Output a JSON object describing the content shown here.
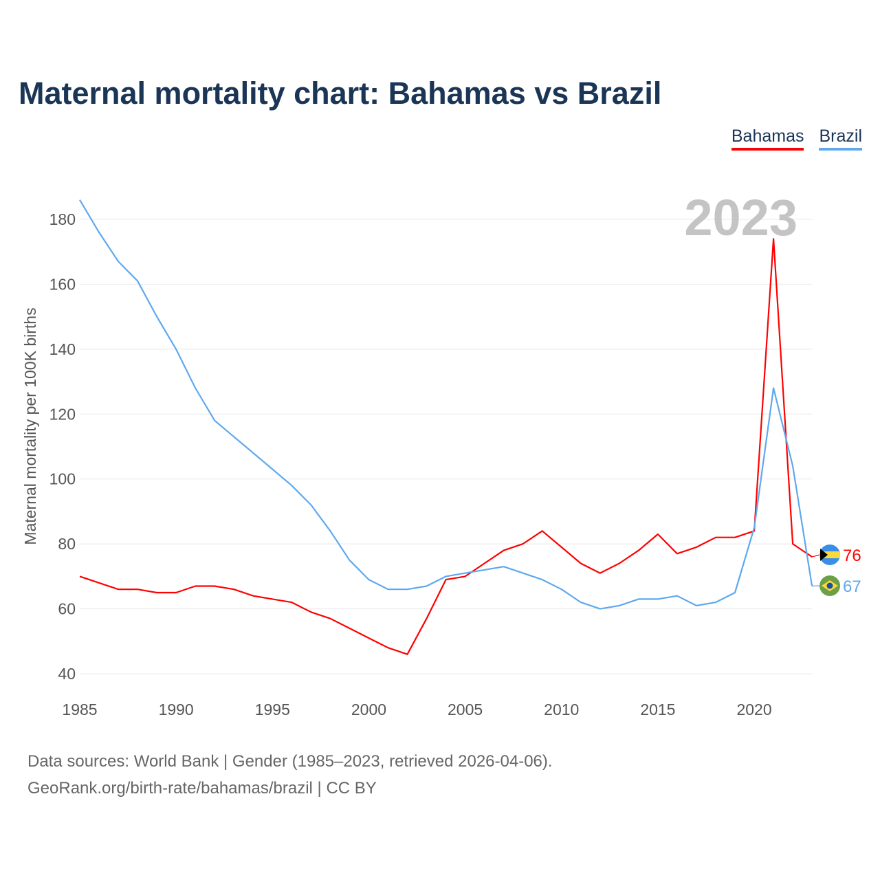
{
  "chart_data": {
    "type": "line",
    "title": "Maternal mortality chart: Bahamas vs Brazil",
    "xlabel": "",
    "ylabel": "Maternal mortality per 100K births",
    "year_label": "2023",
    "xlim": [
      1985,
      2023
    ],
    "ylim": [
      40,
      186
    ],
    "x_ticks": [
      1985,
      1990,
      1995,
      2000,
      2005,
      2010,
      2015,
      2020
    ],
    "y_ticks": [
      40,
      60,
      80,
      100,
      120,
      140,
      160,
      180
    ],
    "grid": true,
    "legend_position": "top-right",
    "x": [
      1985,
      1986,
      1987,
      1988,
      1989,
      1990,
      1991,
      1992,
      1993,
      1994,
      1995,
      1996,
      1997,
      1998,
      1999,
      2000,
      2001,
      2002,
      2003,
      2004,
      2005,
      2006,
      2007,
      2008,
      2009,
      2010,
      2011,
      2012,
      2013,
      2014,
      2015,
      2016,
      2017,
      2018,
      2019,
      2020,
      2021,
      2022,
      2023
    ],
    "series": [
      {
        "name": "Bahamas",
        "color": "#ff0000",
        "end_label": "76",
        "values": [
          70,
          68,
          66,
          66,
          65,
          65,
          67,
          67,
          66,
          64,
          63,
          62,
          59,
          57,
          54,
          51,
          48,
          46,
          57,
          69,
          70,
          74,
          78,
          80,
          84,
          79,
          74,
          71,
          74,
          78,
          83,
          77,
          79,
          82,
          82,
          84,
          174,
          80,
          76
        ]
      },
      {
        "name": "Brazil",
        "color": "#5ea8ee",
        "end_label": "67",
        "values": [
          186,
          176,
          167,
          161,
          150,
          140,
          128,
          118,
          113,
          108,
          103,
          98,
          92,
          84,
          75,
          69,
          66,
          66,
          67,
          70,
          71,
          72,
          73,
          71,
          69,
          66,
          62,
          60,
          61,
          63,
          63,
          64,
          61,
          62,
          65,
          85,
          128,
          104,
          67
        ]
      }
    ]
  },
  "footer": {
    "line1": "Data sources: World Bank | Gender (1985–2023, retrieved 2026-04-06).",
    "line2": "GeoRank.org/birth-rate/bahamas/brazil | CC BY"
  }
}
